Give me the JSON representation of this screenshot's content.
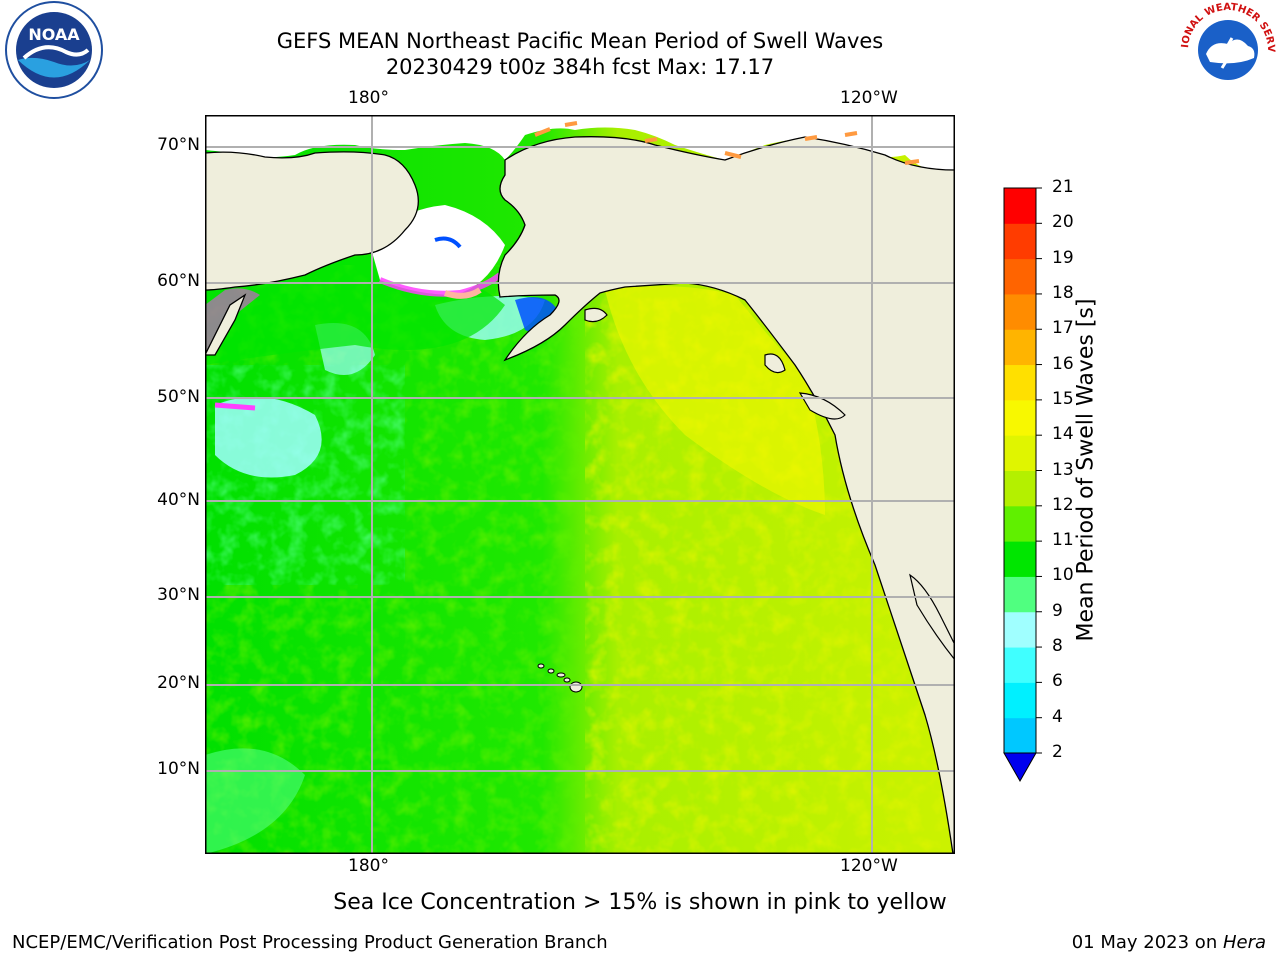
{
  "header": {
    "title_line1": "GEFS MEAN Northeast Pacific Mean Period of Swell Waves",
    "title_line2": "20230429 t00z 384h fcst   Max: 17.17"
  },
  "logos": {
    "left_text": "NOAA",
    "right_text": "NATIONAL WEATHER SERVICE"
  },
  "chart_data": {
    "type": "heatmap",
    "variable": "Mean Period of Swell Waves",
    "units": "s",
    "max_value": 17.17,
    "lon_ticks_top": [
      "180°",
      "120°W"
    ],
    "lon_ticks_bottom": [
      "180°",
      "120°W"
    ],
    "lat_ticks": [
      "70°N",
      "60°N",
      "50°N",
      "40°N",
      "30°N",
      "20°N",
      "10°N"
    ],
    "grid": true,
    "colorbar": {
      "label": "Mean Period of Swell Waves [s]",
      "ticks": [
        "2",
        "4",
        "6",
        "8",
        "9",
        "10",
        "11",
        "12",
        "13",
        "14",
        "15",
        "16",
        "17",
        "18",
        "19",
        "20",
        "21"
      ],
      "colors": [
        "#0050ff",
        "#00c8ff",
        "#00f0ff",
        "#40ffff",
        "#a0ffff",
        "#50ff80",
        "#00e600",
        "#60f000",
        "#b4f000",
        "#e0f500",
        "#f8f800",
        "#ffe000",
        "#ffb400",
        "#ff8c00",
        "#ff6400",
        "#ff3c00",
        "#ff0000"
      ],
      "extend_color": "#0000ee",
      "placement": "right"
    },
    "field_description_colors": {
      "ocean_low": "#00e600",
      "ocean_mid": "#60f000",
      "ocean_high": "#b4f000",
      "ocean_east": "#d8f400",
      "land": "#efeedc",
      "coast": "#000000",
      "grid": "#b0b0b0"
    }
  },
  "annotations": {
    "sea_ice_note": "Sea Ice Concentration > 15% is shown in pink to yellow"
  },
  "footer": {
    "left": "NCEP/EMC/Verification Post Processing Product Generation Branch",
    "right_date": "01 May 2023 on ",
    "right_machine": "Hera"
  }
}
